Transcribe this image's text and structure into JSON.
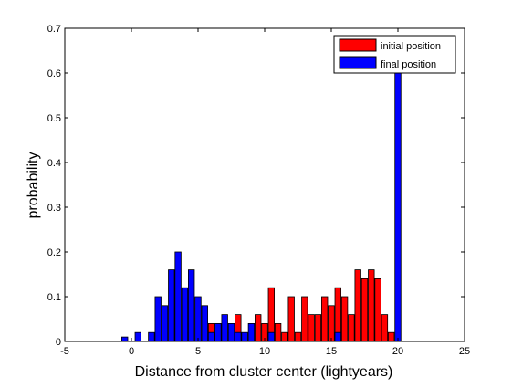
{
  "chart_data": {
    "type": "bar",
    "title": "",
    "xlabel": "Distance from cluster center (lightyears)",
    "ylabel": "probability",
    "xlim": [
      -5,
      25
    ],
    "ylim": [
      0,
      0.7
    ],
    "xticks": [
      "-5",
      "0",
      "5",
      "10",
      "15",
      "20",
      "25"
    ],
    "yticks": [
      "0",
      "0.1",
      "0.2",
      "0.3",
      "0.4",
      "0.5",
      "0.6",
      "0.7"
    ],
    "grid": false,
    "legend_position": "top-right",
    "bin_width": 0.5,
    "series": [
      {
        "name": "initial position",
        "color": "#ff0000",
        "x": [
          6.0,
          6.5,
          7.5,
          8.0,
          9.0,
          9.5,
          10.0,
          10.5,
          11.0,
          11.5,
          12.0,
          12.5,
          13.0,
          13.5,
          14.0,
          14.5,
          15.0,
          15.5,
          16.0,
          16.5,
          17.0,
          17.5,
          18.0,
          18.5,
          19.0,
          19.5
        ],
        "values": [
          0.04,
          0.04,
          0.04,
          0.06,
          0.02,
          0.06,
          0.04,
          0.12,
          0.04,
          0.02,
          0.1,
          0.02,
          0.1,
          0.06,
          0.06,
          0.1,
          0.08,
          0.12,
          0.1,
          0.06,
          0.16,
          0.14,
          0.16,
          0.14,
          0.06,
          0.02
        ]
      },
      {
        "name": "final position",
        "color": "#0000ff",
        "x": [
          -0.5,
          0.5,
          1.5,
          2.0,
          2.5,
          3.0,
          3.5,
          4.0,
          4.5,
          5.0,
          5.5,
          6.0,
          6.5,
          7.0,
          7.5,
          8.0,
          8.5,
          9.0,
          10.5,
          15.5,
          20.0
        ],
        "values": [
          0.01,
          0.02,
          0.02,
          0.1,
          0.08,
          0.16,
          0.2,
          0.12,
          0.16,
          0.1,
          0.08,
          0.02,
          0.04,
          0.06,
          0.04,
          0.02,
          0.02,
          0.04,
          0.02,
          0.02,
          0.6
        ]
      }
    ]
  }
}
